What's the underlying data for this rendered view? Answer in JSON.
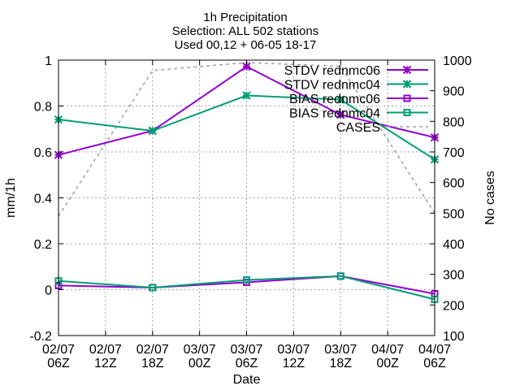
{
  "chart_data": {
    "type": "line",
    "title": [
      "1h Precipitation",
      "Selection: ALL    502 stations",
      "Used 00,12 + 06-05 18-17"
    ],
    "xlabel": "Date",
    "ylabel": "mm/1h",
    "y2label": "No cases",
    "x_ticks": [
      [
        "02/07",
        "06Z"
      ],
      [
        "02/07",
        "12Z"
      ],
      [
        "02/07",
        "18Z"
      ],
      [
        "03/07",
        "00Z"
      ],
      [
        "03/07",
        "06Z"
      ],
      [
        "03/07",
        "12Z"
      ],
      [
        "03/07",
        "18Z"
      ],
      [
        "04/07",
        "00Z"
      ],
      [
        "04/07",
        "06Z"
      ]
    ],
    "ylim": [
      -0.2,
      1.0
    ],
    "y_ticks": [
      "-0.2",
      "0",
      "0.2",
      "0.4",
      "0.6",
      "0.8",
      "1"
    ],
    "y2lim": [
      100,
      1000
    ],
    "y2_ticks": [
      "100",
      "200",
      "300",
      "400",
      "500",
      "600",
      "700",
      "800",
      "900",
      "1000"
    ],
    "grid": true,
    "legend_position": "top-right",
    "series": [
      {
        "name": "STDV rednmc06",
        "axis": "y",
        "color": "#9400d3",
        "marker": "x-star",
        "dashed": false,
        "x": [
          0,
          2,
          4,
          6,
          8
        ],
        "values": [
          0.587,
          0.692,
          0.972,
          0.762,
          0.663
        ]
      },
      {
        "name": "STDV rednmc04",
        "axis": "y",
        "color": "#009e73",
        "marker": "x-star",
        "dashed": false,
        "x": [
          0,
          2,
          4,
          6,
          8
        ],
        "values": [
          0.741,
          0.692,
          0.846,
          0.828,
          0.567
        ]
      },
      {
        "name": "BIAS rednmc06",
        "axis": "y",
        "color": "#9400d3",
        "marker": "square",
        "dashed": false,
        "x": [
          0,
          2,
          4,
          6,
          8
        ],
        "values": [
          0.018,
          0.009,
          0.032,
          0.059,
          -0.018
        ]
      },
      {
        "name": "BIAS rednmc04",
        "axis": "y",
        "color": "#009e73",
        "marker": "square",
        "dashed": false,
        "x": [
          0,
          2,
          4,
          6,
          8
        ],
        "values": [
          0.038,
          0.009,
          0.042,
          0.059,
          -0.042
        ]
      },
      {
        "name": "CASES",
        "axis": "y2",
        "color": "#a0a0a0",
        "marker": "none",
        "dashed": true,
        "x": [
          0,
          2,
          4,
          6,
          8
        ],
        "values": [
          490,
          966,
          992,
          980,
          500
        ]
      }
    ]
  }
}
